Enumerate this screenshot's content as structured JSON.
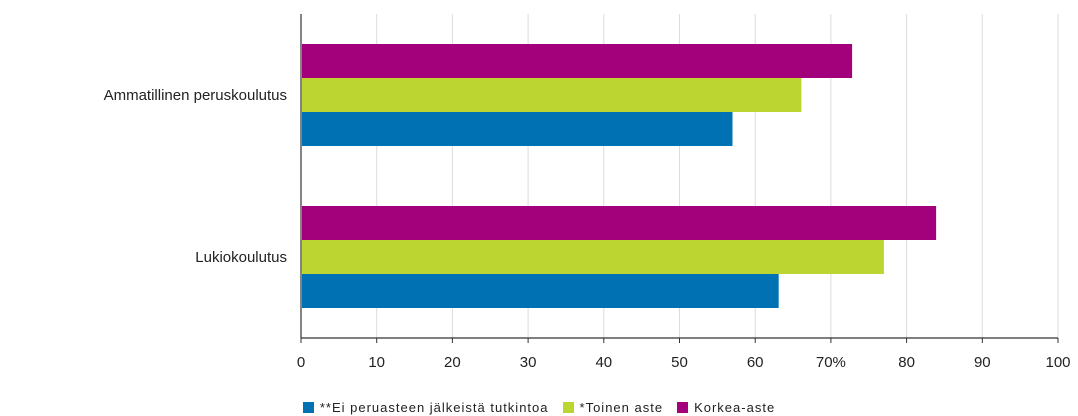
{
  "chart_data": {
    "type": "bar",
    "orientation": "horizontal",
    "categories": [
      "Ammatillinen peruskoulutus",
      "Lukiokoulutus"
    ],
    "series": [
      {
        "name": "Korkea-aste",
        "color": "#a3007b",
        "values": [
          72.8,
          83.9
        ]
      },
      {
        "name": "*Toinen aste",
        "color": "#bcd531",
        "values": [
          66.1,
          77.0
        ]
      },
      {
        "name": "**Ei peruasteen jälkeistä tutkintoa",
        "color": "#0072b4",
        "values": [
          57.0,
          63.1
        ]
      }
    ],
    "legend_order": [
      "**Ei peruasteen jälkeistä tutkintoa",
      "*Toinen aste",
      "Korkea-aste"
    ],
    "x_ticks": [
      {
        "value": 0,
        "label": "0"
      },
      {
        "value": 10,
        "label": "10"
      },
      {
        "value": 20,
        "label": "20"
      },
      {
        "value": 30,
        "label": "30"
      },
      {
        "value": 40,
        "label": "40"
      },
      {
        "value": 50,
        "label": "50"
      },
      {
        "value": 60,
        "label": "60"
      },
      {
        "value": 70,
        "label": "70%"
      },
      {
        "value": 80,
        "label": "80"
      },
      {
        "value": 90,
        "label": "90"
      },
      {
        "value": 100,
        "label": "100"
      }
    ],
    "xlim": [
      0,
      100
    ],
    "grid": true,
    "legend_position": "bottom",
    "title": "",
    "xlabel": "",
    "ylabel": ""
  }
}
